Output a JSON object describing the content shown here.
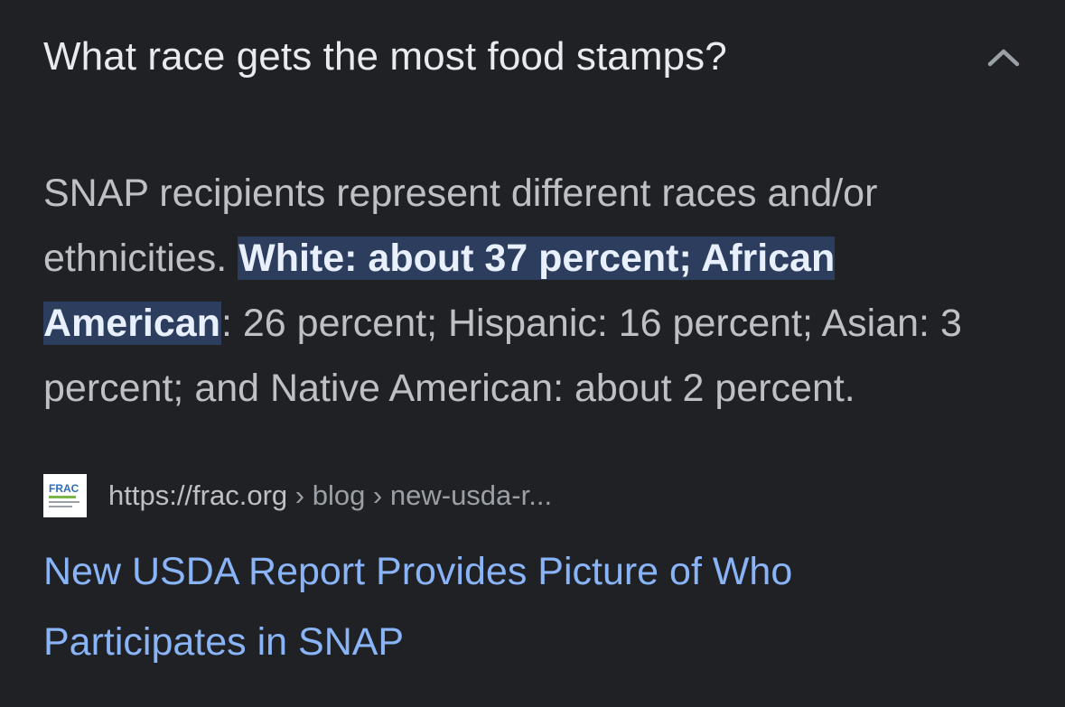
{
  "faq": {
    "question": "What race gets the most food stamps?",
    "chevron_icon": "chevron-up-icon"
  },
  "answer": {
    "lead": "SNAP recipients represent different races and/or ethnicities. ",
    "highlight": "White: about 37 percent; African American",
    "rest": ": 26 percent; Hispanic: 16 percent; Asian: 3 percent; and Native American: about 2 percent."
  },
  "source": {
    "favicon_icon": "frac-logo-icon",
    "favicon_text": "FRAC",
    "domain": "https://frac.org",
    "path_1": "blog",
    "path_2": "new-usda-r..."
  },
  "result": {
    "title": "New USDA Report Provides Picture of Who Participates in SNAP"
  },
  "colors": {
    "background": "#202124",
    "text_primary": "#e8eaed",
    "text_secondary": "#bdc1c6",
    "link": "#8ab4f8",
    "highlight_bg": "#2c3d5e"
  }
}
